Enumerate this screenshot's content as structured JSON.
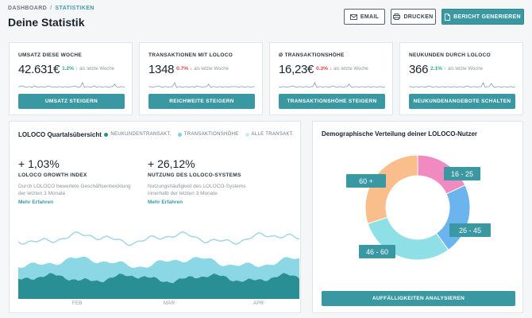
{
  "breadcrumb": {
    "root": "DASHBOARD",
    "separator": "/",
    "current": "STATISTIKEN"
  },
  "page_title": "Deine Statistik",
  "toolbar": {
    "email_label": "EMAIL",
    "email_icon": "envelope-icon",
    "print_label": "DRUCKEN",
    "print_icon": "printer-icon",
    "report_label": "BERICHT GENERIEREN",
    "report_icon": "document-icon"
  },
  "kpis": [
    {
      "label": "UMSATZ DIESE WOCHE",
      "value": "42.631€",
      "change": "1.2%",
      "direction": "up",
      "note": "als letzte Woche",
      "button": "UMSATZ STEIGERN"
    },
    {
      "label": "TRANSAKTIONEN MIT LOLOCO",
      "value": "1348",
      "change": "0.7%",
      "direction": "down",
      "note": "als letzte Woche",
      "button": "REICHWEITE STEIGERN"
    },
    {
      "label": "Ø TRANSAKTIONSHÖHE",
      "value": "16,23€",
      "change": "0.3%",
      "direction": "down",
      "note": "als letzte Woche",
      "button": "TRANSAKTIONSHÖHE STEIGERN"
    },
    {
      "label": "NEUKUNDEN DURCH LOLOCO",
      "value": "366",
      "change": "2.1%",
      "direction": "up",
      "note": "als letzte Woche",
      "button": "NEUKUNDENANGEBOTE SCHALTEN"
    }
  ],
  "quarter": {
    "title": "LOLOCO Quartalsübersicht",
    "legend": [
      {
        "label": "NEUKUNDENTRANSAKT.",
        "color": "#2a8f94"
      },
      {
        "label": "TRANSAKTIONSHÖHE",
        "color": "#7fd3e2"
      },
      {
        "label": "ALLE TRANSAKT.",
        "color": "#cfe9f1"
      }
    ],
    "metrics": [
      {
        "value": "+ 1,03%",
        "label": "LOLOCO GROWTH INDEX",
        "desc": "Durch LOLOCO bewertete Geschäftsentwicklung der letzten 3 Monate",
        "link": "Mehr Erfahren"
      },
      {
        "value": "+ 26,12%",
        "label": "NUTZUNG DES LOLOCO-SYSTEMS",
        "desc": "Nutzungshäufigkeit des LOLOCO-Systems innerhalb der letzten 3 Monate",
        "link": "Mehr Erfahren"
      }
    ],
    "months": [
      "FEB",
      "MÄR",
      "APR"
    ]
  },
  "demographics": {
    "title": "Demographische Verteilung deiner LOLOCO-Nutzer",
    "segments": [
      {
        "label": "16 - 25",
        "value": 18,
        "color": "#f18ac0"
      },
      {
        "label": "26 - 45",
        "value": 22,
        "color": "#6cb4ee"
      },
      {
        "label": "46 - 60",
        "value": 30,
        "color": "#8ee0e6"
      },
      {
        "label": "60 +",
        "value": 30,
        "color": "#f9be8b"
      }
    ],
    "button": "AUFFÄLLIGKEITEN ANALYSIEREN"
  }
}
